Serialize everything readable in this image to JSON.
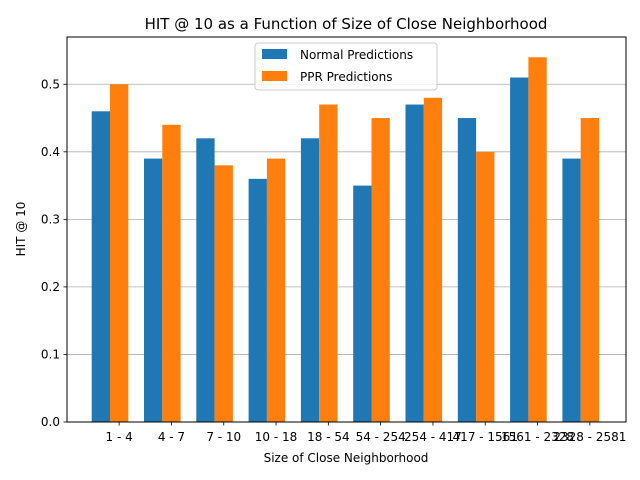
{
  "chart_data": {
    "type": "bar",
    "title": "HIT @ 10 as a Function of Size of Close Neighborhood",
    "xlabel": "Size of Close Neighborhood",
    "ylabel": "HIT @ 10",
    "categories": [
      "1 - 4",
      "4 - 7",
      "7 - 10",
      "10 - 18",
      "18 - 54",
      "54 - 254",
      "254 - 417",
      "417 - 1561",
      "1561 - 2328",
      "2328 - 2581"
    ],
    "series": [
      {
        "name": "Normal Predictions",
        "color": "#1f77b4",
        "values": [
          0.46,
          0.39,
          0.42,
          0.36,
          0.42,
          0.35,
          0.47,
          0.45,
          0.51,
          0.39
        ]
      },
      {
        "name": "PPR Predictions",
        "color": "#ff7f0e",
        "values": [
          0.5,
          0.44,
          0.38,
          0.39,
          0.47,
          0.45,
          0.48,
          0.4,
          0.54,
          0.45
        ]
      }
    ],
    "ylim": [
      0,
      0.57
    ],
    "yticks": [
      "0.0",
      "0.1",
      "0.2",
      "0.3",
      "0.4",
      "0.5"
    ],
    "grid": "y",
    "legend_position": "upper center"
  }
}
